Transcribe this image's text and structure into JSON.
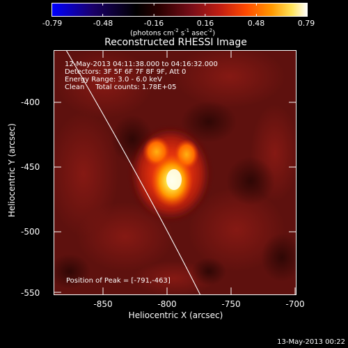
{
  "colorbar": {
    "ticks": [
      "-0.79",
      "-0.48",
      "-0.16",
      "0.16",
      "0.48",
      "0.79"
    ],
    "unit": {
      "prefix": "(photons cm",
      "exp1": "-2",
      "mid1": " s",
      "exp2": "-1",
      "mid2": " asec",
      "exp3": "-2",
      "suffix": ")"
    }
  },
  "plot": {
    "title": "Reconstructed RHESSI Image",
    "xlabel": "Heliocentric X (arcsec)",
    "ylabel": "Heliocentric Y (arcsec)",
    "xticks": [
      "-850",
      "-800",
      "-750",
      "-700"
    ],
    "yticks": [
      "-400",
      "-450",
      "-500",
      "-550"
    ],
    "xlim": [
      -882,
      -700
    ],
    "ylim": [
      -553,
      -375
    ]
  },
  "info": {
    "time_range": "12-May-2013 04:11:38.000 to 04:16:32.000",
    "detectors": "Detectors: 3F 5F 6F 7F 8F 9F, Att 0",
    "energy": "Energy Range: 3.0 - 6.0 keV",
    "method": "Clean     Total counts: 1.78E+05"
  },
  "peak_text": "Position of Peak = [-791,-463]",
  "footer_timestamp": "13-May-2013 00:22"
}
